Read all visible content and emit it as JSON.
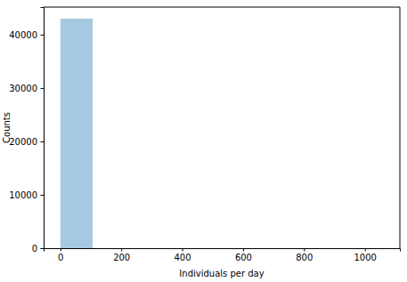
{
  "chart_data": {
    "type": "histogram",
    "x_label": "Individuals per day",
    "y_label": "Counts",
    "bins": [
      0,
      106,
      212,
      318,
      424,
      530,
      636,
      742,
      848,
      954,
      1060
    ],
    "counts": [
      43000,
      0,
      0,
      0,
      0,
      0,
      0,
      0,
      0,
      0
    ],
    "color": "#a5c9e1",
    "xlim": [
      -55,
      1115
    ],
    "xticks": [
      0,
      200,
      400,
      600,
      800,
      1000
    ],
    "ylim": [
      0,
      45150
    ],
    "yticks": [
      0,
      10000,
      20000,
      30000,
      40000
    ],
    "grid": false
  }
}
